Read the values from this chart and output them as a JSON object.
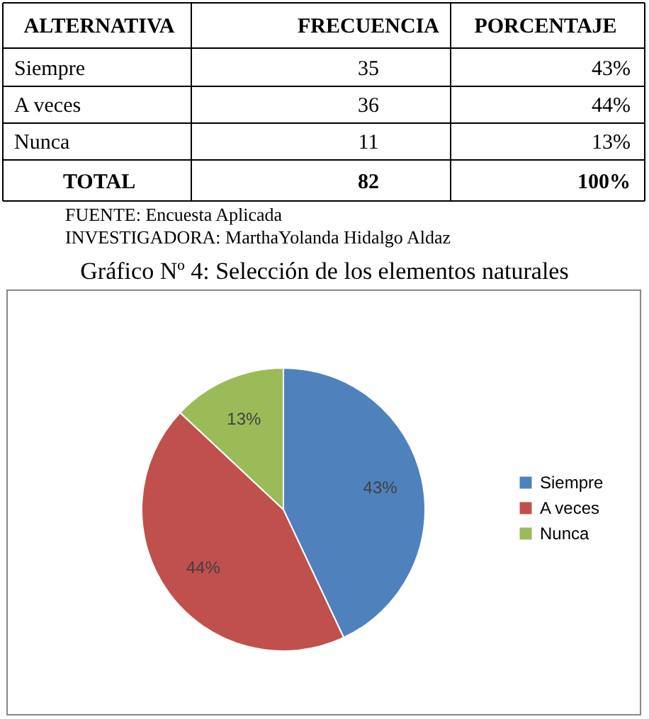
{
  "chart_data": {
    "type": "pie",
    "title": "Gráfico Nº 4: Selección de los elementos naturales",
    "categories": [
      "Siempre",
      "A veces",
      "Nunca"
    ],
    "values": [
      43,
      44,
      13
    ],
    "colors": [
      "#4f81bd",
      "#c0504d",
      "#9bbb59"
    ],
    "value_labels": [
      "43%",
      "44%",
      "13%"
    ],
    "legend": "right",
    "annotations": [
      "ALTERNATIVA",
      "FRECUENCIA",
      "PORCENTAJE",
      "Siempre",
      "35",
      "43%",
      "A veces",
      "36",
      "44%",
      "Nunca",
      "11",
      "13%",
      "TOTAL",
      "82",
      "100%",
      "FUENTE: Encuesta Aplicada",
      "INVESTIGADORA: MarthaYolanda Hidalgo Aldaz"
    ]
  }
}
